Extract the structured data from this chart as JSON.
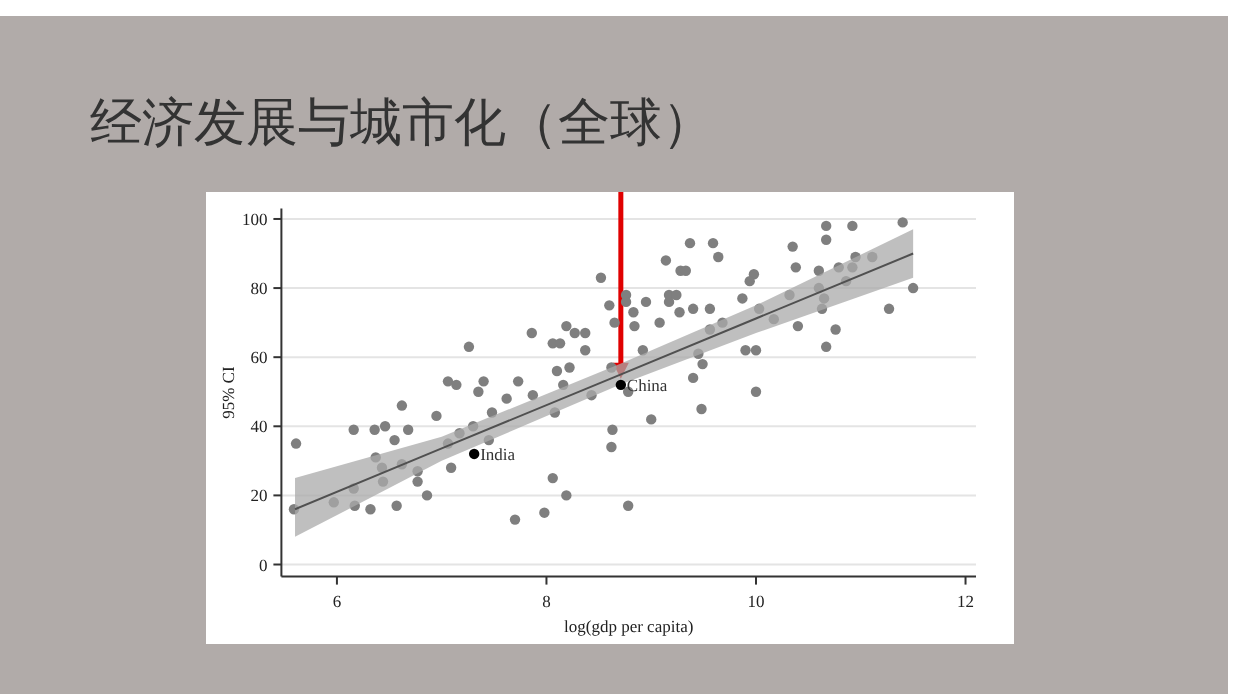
{
  "chart_data": {
    "type": "scatter",
    "title": "经济发展与城市化（全球）",
    "xlabel": "log(gdp per capita)",
    "ylabel": "95% CI",
    "xlim": [
      5.47,
      12.1
    ],
    "ylim": [
      -3.5,
      103
    ],
    "xticks": [
      6,
      8,
      10,
      12
    ],
    "yticks": [
      0,
      20,
      40,
      60,
      80,
      100
    ],
    "grid": "y",
    "marker": "circle",
    "series": [
      {
        "color": "#7f7f7f",
        "x": [
          5.61,
          5.59,
          5.97,
          6.16,
          6.17,
          6.16,
          6.32,
          6.36,
          6.46,
          6.37,
          6.43,
          6.44,
          6.55,
          6.57,
          6.62,
          6.62,
          6.68,
          6.77,
          6.77,
          6.86,
          6.95,
          7.06,
          7.14,
          7.06,
          7.09,
          7.17,
          7.26,
          7.3,
          7.35,
          7.4,
          7.45,
          7.48,
          7.62,
          7.7,
          7.73,
          7.86,
          7.87,
          7.98,
          8.06,
          8.06,
          8.13,
          8.08,
          8.1,
          8.19,
          8.16,
          8.22,
          8.19,
          8.27,
          8.37,
          8.37,
          8.43,
          8.52,
          8.6,
          8.62,
          8.62,
          8.63,
          8.65,
          8.76,
          8.76,
          8.83,
          8.84,
          8.78,
          8.78,
          8.92,
          8.95,
          9.0,
          9.08,
          9.14,
          9.17,
          9.17,
          9.24,
          9.28,
          9.27,
          9.33,
          9.37,
          9.4,
          9.4,
          9.45,
          9.49,
          9.48,
          9.56,
          9.56,
          9.59,
          9.64,
          9.68,
          9.87,
          9.9,
          9.98,
          10.0,
          10.0,
          10.03,
          9.94,
          10.17,
          10.32,
          10.35,
          10.38,
          10.4,
          10.6,
          10.6,
          10.63,
          10.65,
          10.67,
          10.67,
          10.67,
          10.76,
          10.79,
          10.86,
          10.92,
          10.92,
          10.95,
          11.11,
          11.27,
          11.4,
          11.5
        ],
        "values": [
          35,
          16,
          18,
          22,
          17,
          39,
          16,
          39,
          40,
          31,
          28,
          24,
          36,
          17,
          46,
          29,
          39,
          27,
          24,
          20,
          43,
          53,
          52,
          35,
          28,
          38,
          63,
          40,
          50,
          53,
          36,
          44,
          48,
          13,
          53,
          67,
          49,
          15,
          25,
          64,
          64,
          44,
          56,
          20,
          52,
          57,
          69,
          67,
          67,
          62,
          49,
          83,
          75,
          57,
          34,
          39,
          70,
          78,
          76,
          73,
          69,
          50,
          17,
          62,
          76,
          42,
          70,
          88,
          78,
          76,
          78,
          85,
          73,
          85,
          93,
          74,
          54,
          61,
          58,
          45,
          74,
          68,
          93,
          89,
          70,
          77,
          62,
          84,
          62,
          50,
          74,
          82,
          71,
          78,
          92,
          86,
          69,
          85,
          80,
          74,
          77,
          98,
          94,
          63,
          68,
          86,
          82,
          98,
          86,
          89,
          89,
          74,
          99,
          80
        ]
      },
      {
        "type": "line",
        "marker": "none",
        "color": "#505050",
        "x": [
          5.6,
          7,
          8.7,
          10,
          11.5
        ],
        "values": [
          16,
          33.6,
          54.9,
          71.2,
          90
        ],
        "lower": [
          8,
          30,
          52,
          67,
          83
        ],
        "upper": [
          25,
          37,
          58,
          75,
          97
        ]
      },
      {
        "name": "India",
        "color": "#000000",
        "x": [
          7.31
        ],
        "values": [
          32
        ]
      },
      {
        "name": "China",
        "color": "#000000",
        "x": [
          8.71
        ],
        "values": [
          52
        ]
      }
    ]
  }
}
